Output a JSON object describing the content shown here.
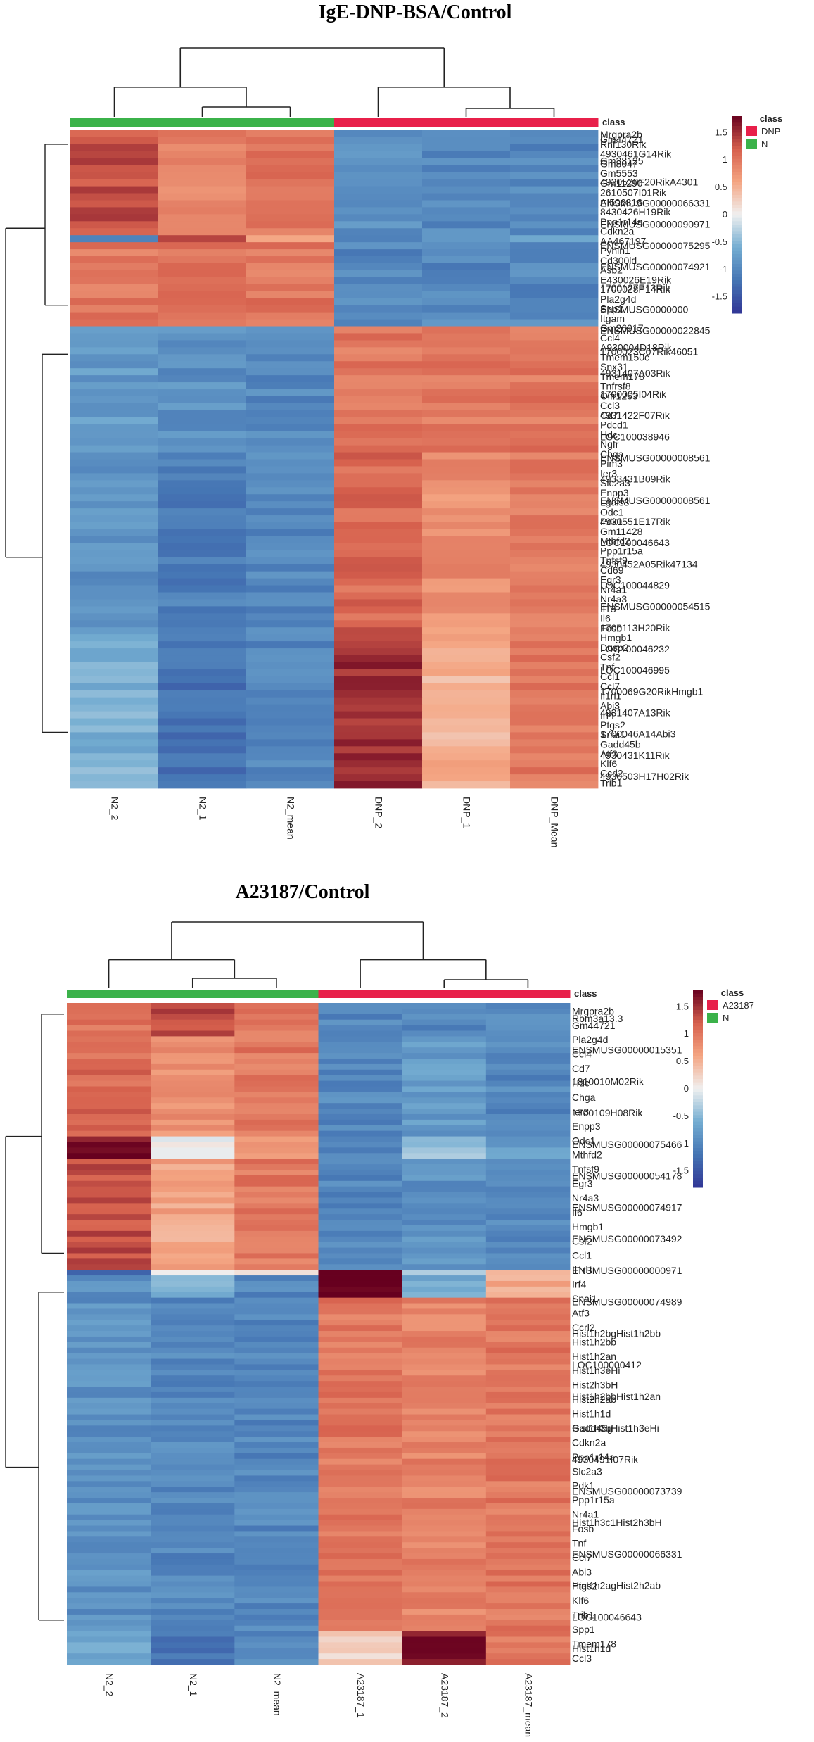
{
  "chart_data": [
    {
      "type": "heatmap",
      "title": "IgE-DNP-BSA/Control",
      "columns": [
        "N2_2",
        "N2_1",
        "N2_mean",
        "DNP_2",
        "DNP_1",
        "DNP_Mean"
      ],
      "column_groups": [
        "N",
        "N",
        "N",
        "DNP",
        "DNP",
        "DNP"
      ],
      "class_label": "class",
      "legend": {
        "title": "class",
        "entries": [
          {
            "label": "DNP",
            "color": "#e8204a"
          },
          {
            "label": "N",
            "color": "#3bb24a"
          }
        ],
        "scale_range": [
          -1.8,
          1.8
        ],
        "scale_ticks": [
          "1.5",
          "1",
          "0.5",
          "0",
          "-0.5",
          "-1",
          "-1.5"
        ]
      },
      "column_dendrogram": {
        "top_merge_height": 1.0,
        "left_cluster_height": 0.43,
        "right_cluster_height": 0.43
      },
      "row_labels": [
        "Mrgpra2b",
        "Rnf130Rik",
        "4930461G14Rik",
        "Gm8047",
        "Gm5553",
        "Gm11290",
        "2610507I01Rik",
        "AI506816",
        "8430426H19Rik",
        "Ppp1r14a",
        "Cdkn2a",
        "AA467197",
        "Pyhin1",
        "Cd300ld",
        "Asb2",
        "E430026E19Rik",
        "1700028P14Rik",
        "Pla2g4d",
        "Spp1",
        "Itgam",
        "Gm26917",
        "Ccl4",
        "A930004D18Rik",
        "Tmem150c",
        "Snx31",
        "Tmem178",
        "Tnfrsf8",
        "Olfr1263",
        "Ccl3",
        "Cd7",
        "Pdcd1",
        "Hdc",
        "Ngfr",
        "Chga",
        "Pim3",
        "Ier3",
        "Slc2a3",
        "Enpp3",
        "Lgals3",
        "Odc1",
        "Pdk1",
        "Gm11428",
        "Mthfd2",
        "Ppp1r15a",
        "Tnfsf9",
        "Cd69",
        "Egr3",
        "Nr4a1",
        "Nr4a3",
        "Il13",
        "Il6",
        "Fosb",
        "Hmgb1",
        "Dusp2",
        "Csf2",
        "Tnf",
        "Ccl1",
        "Ccl7",
        "Il1rl1",
        "Abi3",
        "Irf4",
        "Ptgs2",
        "Snai1",
        "Gadd45b",
        "Atf3",
        "Klf6",
        "Ccrl2",
        "Trib1"
      ],
      "annotation_row_labels": [
        "Gm44721",
        "Gm38125",
        "4920520F20RikA4301",
        "ENSMUSG00000066331",
        "ENSMUSG00000090971",
        "ENSMUSG00000075295",
        "ENSMUSG00000074921",
        "1700127E13Rik",
        "ENSMUSG0000000",
        "ENSMUSG00000022845",
        "1700023C07Rik46051",
        "4931407A03Rik",
        "1700005I04Rik",
        "4931422F07Rik",
        "LOC100038946",
        "ENSMUSG00000008561",
        "4933431B09Rik",
        "ENSMUSG00000008561",
        "4930551E17Rik",
        "LOC100046643",
        "4930452A05Rik47134",
        "LOC100044829",
        "ENSMUSG00000054515",
        "1700113H20Rik",
        "LOC100046232",
        "LOC100046995",
        "1700069G20RikHmgb1",
        "4931407A13Rik",
        "1700046A14Abi3",
        "4930431K11Rik",
        "4930503H17H02Rik"
      ],
      "row_dendrogram": {
        "top_split": [
          "upregulated_in_N",
          "upregulated_in_DNP"
        ]
      },
      "blocks": [
        {
          "rows": 15,
          "values": [
            [
              1.3,
              0.9,
              1.0,
              -0.9,
              -1.0,
              -1.0
            ]
          ]
        },
        {
          "rows": 1,
          "values": [
            [
              -1.1,
              1.5,
              0.6,
              -1.1,
              -0.7,
              -0.8
            ]
          ]
        },
        {
          "rows": 12,
          "values": [
            [
              1.0,
              1.0,
              1.0,
              -1.0,
              -1.0,
              -1.0
            ]
          ]
        },
        {
          "rows": 18,
          "values": [
            [
              -0.8,
              -0.9,
              -1.0,
              1.0,
              1.0,
              1.0
            ]
          ]
        },
        {
          "rows": 25,
          "values": [
            [
              -0.9,
              -1.1,
              -1.0,
              1.1,
              0.8,
              1.0
            ]
          ]
        },
        {
          "rows": 23,
          "values": [
            [
              -0.6,
              -1.2,
              -1.0,
              1.5,
              0.5,
              1.0
            ]
          ]
        }
      ],
      "x_order_note": "bottom axis labels rotated 90 degrees"
    },
    {
      "type": "heatmap",
      "title": "A23187/Control",
      "columns": [
        "N2_2",
        "N2_1",
        "N2_mean",
        "A23187_1",
        "A23187_2",
        "A23187_mean"
      ],
      "column_groups": [
        "N",
        "N",
        "N",
        "A23187",
        "A23187",
        "A23187"
      ],
      "class_label": "class",
      "legend": {
        "title": "class",
        "entries": [
          {
            "label": "A23187",
            "color": "#e8204a"
          },
          {
            "label": "N",
            "color": "#3bb24a"
          }
        ],
        "scale_range": [
          -1.8,
          1.8
        ],
        "scale_ticks": [
          "1.5",
          "1",
          "0.5",
          "0",
          "-0.5",
          "-1",
          "-1.5"
        ]
      },
      "column_dendrogram": {
        "top_merge_height": 1.0,
        "left_cluster_height": 0.43,
        "right_cluster_height": 0.43
      },
      "row_labels": [
        "Mrgpra2b",
        "Gm44721",
        "Pla2g4d",
        "Ccl4",
        "Cd7",
        "Hdc",
        "Chga",
        "Ier3",
        "Enpp3",
        "Odc1",
        "Mthfd2",
        "Tnfsf9",
        "Egr3",
        "Nr4a3",
        "Il6",
        "Hmgb1",
        "Csf2",
        "Ccl1",
        "Il1rl1",
        "Irf4",
        "Snai1",
        "Atf3",
        "Ccrl2",
        "Hist1h2bb",
        "Hist1h2an",
        "Hist1h3eHi",
        "Hist2h3bH",
        "Hist2h2ab",
        "Hist1h1d",
        "Gadd45g",
        "Cdkn2a",
        "Ppp1r14a",
        "Slc2a3",
        "Pdk1",
        "Ppp1r15a",
        "Nr4a1",
        "Fosb",
        "Tnf",
        "Ccl7",
        "Abi3",
        "Ptgs2",
        "Klf6",
        "Trib1",
        "Spp1",
        "Tmem178",
        "Ccl3"
      ],
      "annotation_row_labels": [
        "Rbm3a13.3",
        "ENSMUSG00000015351",
        "1810010M02Rik",
        "1700109H08Rik",
        "ENSMUSG00000075466",
        "ENSMUSG00000054178",
        "ENSMUSG00000074917",
        "ENSMUSG00000073492",
        "ENSMUSG00000000971",
        "ENSMUSG00000074989",
        "Hist1h2bgHist1h2bb",
        "LOC100000412",
        "Hist1h2bbHist1h2an",
        "Hist1h3bHist1h3eHi",
        "4930491I07Rik",
        "ENSMUSG00000073739",
        "Hist1h3c1Hist2h3bH",
        "ENSMUSG00000066331",
        "Hist1h2agHist2h2ab",
        "LOC100046643",
        "Hist1h1d"
      ],
      "row_dendrogram": {
        "top_split": [
          "upregulated_in_N",
          "upregulated_in_A23187"
        ]
      },
      "blocks": [
        {
          "rows": 6,
          "values": [
            [
              1.0,
              1.3,
              1.0,
              -1.0,
              -1.0,
              -0.9
            ]
          ]
        },
        {
          "rows": 18,
          "values": [
            [
              1.1,
              0.8,
              1.0,
              -1.0,
              -0.8,
              -1.0
            ]
          ]
        },
        {
          "rows": 4,
          "values": [
            [
              1.7,
              0.0,
              0.7,
              -1.1,
              -0.4,
              -0.8
            ]
          ]
        },
        {
          "rows": 20,
          "values": [
            [
              1.3,
              0.6,
              1.0,
              -1.0,
              -0.9,
              -1.0
            ]
          ]
        },
        {
          "rows": 1,
          "values": [
            [
              -1.2,
              0.0,
              0.3,
              1.8,
              -0.3,
              0.5
            ]
          ]
        },
        {
          "rows": 4,
          "values": [
            [
              -0.9,
              -0.5,
              -1.0,
              1.8,
              -0.6,
              0.6
            ]
          ]
        },
        {
          "rows": 60,
          "values": [
            [
              -0.9,
              -1.0,
              -1.0,
              1.0,
              0.9,
              1.0
            ]
          ]
        },
        {
          "rows": 6,
          "values": [
            [
              -0.7,
              -1.2,
              -1.0,
              0.2,
              1.7,
              1.0
            ]
          ]
        }
      ]
    }
  ]
}
